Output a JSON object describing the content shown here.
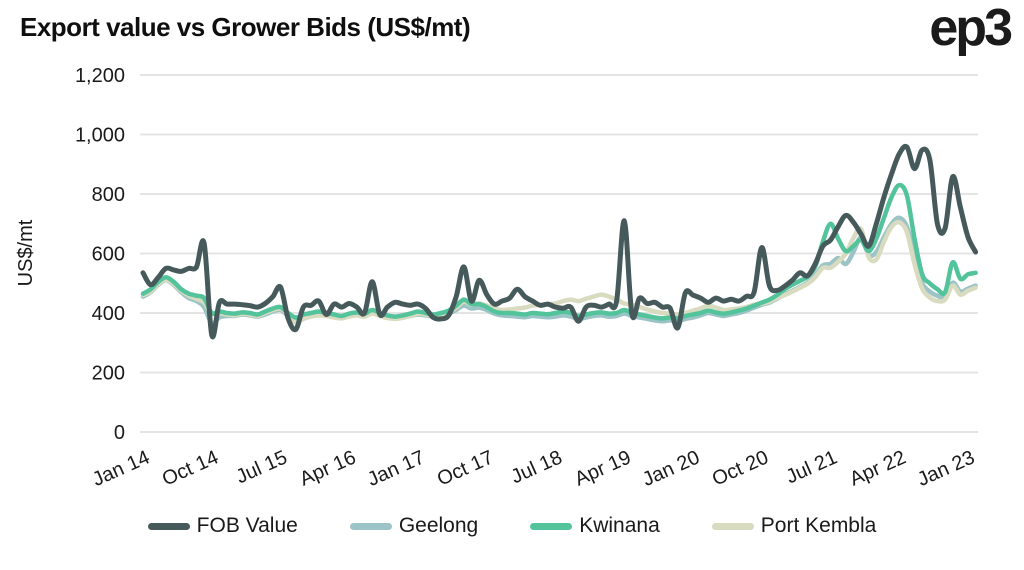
{
  "header": {
    "title": "Export value vs Grower Bids (US$/mt)",
    "logo": "ep3"
  },
  "chart_data": {
    "type": "line",
    "title": "Export value vs Grower Bids (US$/mt)",
    "xlabel": "",
    "ylabel": "US$/mt",
    "ylim": [
      0,
      1200
    ],
    "y_tick_values": [
      0,
      200,
      400,
      600,
      800,
      1000,
      1200
    ],
    "y_tick_labels": [
      "0",
      "200",
      "400",
      "600",
      "800",
      "1,000",
      "1,200"
    ],
    "grid": "horizontal",
    "legend_position": "bottom",
    "x_start": "Jan 2014",
    "x_frequency": "monthly",
    "x_tick_labels": [
      "Jan 14",
      "Oct 14",
      "Jul 15",
      "Apr 16",
      "Jan 17",
      "Oct 17",
      "Jul 18",
      "Apr 19",
      "Jan 20",
      "Oct 20",
      "Jul 21",
      "Apr 22",
      "Jan 23"
    ],
    "x_tick_month_indices": [
      0,
      9,
      18,
      27,
      36,
      45,
      54,
      63,
      72,
      81,
      90,
      99,
      108
    ],
    "series": [
      {
        "name": "FOB Value",
        "color": "#465A5C",
        "values": [
          535,
          495,
          520,
          550,
          545,
          540,
          550,
          555,
          635,
          325,
          435,
          430,
          430,
          428,
          425,
          420,
          432,
          455,
          487,
          382,
          345,
          420,
          426,
          440,
          395,
          430,
          420,
          432,
          420,
          400,
          505,
          395,
          420,
          436,
          430,
          426,
          430,
          415,
          385,
          380,
          392,
          455,
          555,
          440,
          510,
          462,
          430,
          440,
          450,
          480,
          455,
          440,
          426,
          430,
          420,
          416,
          420,
          372,
          420,
          426,
          420,
          430,
          440,
          710,
          396,
          450,
          432,
          436,
          420,
          416,
          350,
          468,
          460,
          450,
          436,
          450,
          440,
          446,
          440,
          456,
          470,
          620,
          492,
          476,
          490,
          510,
          535,
          525,
          565,
          625,
          645,
          690,
          728,
          705,
          665,
          625,
          700,
          790,
          868,
          935,
          958,
          885,
          948,
          915,
          700,
          685,
          858,
          755,
          655,
          605
        ]
      },
      {
        "name": "Geelong",
        "color": "#9CC3C6",
        "values": [
          455,
          470,
          495,
          510,
          495,
          470,
          450,
          440,
          420,
          365,
          385,
          390,
          390,
          395,
          392,
          388,
          395,
          405,
          410,
          390,
          375,
          385,
          390,
          395,
          392,
          388,
          385,
          390,
          394,
          390,
          400,
          392,
          385,
          382,
          386,
          390,
          395,
          392,
          388,
          392,
          398,
          410,
          425,
          415,
          418,
          410,
          398,
          392,
          390,
          388,
          386,
          390,
          388,
          386,
          388,
          392,
          388,
          380,
          385,
          390,
          392,
          388,
          390,
          398,
          390,
          385,
          380,
          375,
          372,
          375,
          372,
          380,
          385,
          392,
          400,
          395,
          390,
          395,
          400,
          408,
          418,
          428,
          435,
          448,
          462,
          475,
          488,
          502,
          525,
          560,
          565,
          585,
          565,
          605,
          655,
          595,
          605,
          655,
          700,
          720,
          690,
          585,
          500,
          472,
          458,
          452,
          502,
          472,
          482,
          492
        ]
      },
      {
        "name": "Kwinana",
        "color": "#53C39B",
        "values": [
          465,
          480,
          505,
          520,
          505,
          480,
          465,
          458,
          450,
          400,
          405,
          400,
          398,
          402,
          400,
          395,
          405,
          415,
          420,
          400,
          385,
          395,
          400,
          405,
          400,
          395,
          390,
          398,
          402,
          398,
          410,
          400,
          392,
          388,
          392,
          398,
          405,
          400,
          395,
          400,
          408,
          425,
          445,
          430,
          430,
          420,
          405,
          400,
          400,
          398,
          395,
          400,
          398,
          396,
          400,
          405,
          400,
          390,
          395,
          400,
          402,
          398,
          400,
          410,
          400,
          395,
          390,
          385,
          382,
          385,
          382,
          390,
          395,
          400,
          408,
          402,
          398,
          402,
          408,
          415,
          425,
          435,
          445,
          460,
          480,
          495,
          508,
          522,
          555,
          640,
          700,
          650,
          608,
          625,
          645,
          608,
          650,
          720,
          790,
          830,
          795,
          650,
          530,
          500,
          480,
          470,
          570,
          515,
          530,
          535
        ]
      },
      {
        "name": "Port Kembla",
        "color": "#D8DBBF",
        "values": [
          460,
          472,
          498,
          512,
          498,
          475,
          458,
          448,
          435,
          398,
          400,
          395,
          392,
          398,
          395,
          390,
          400,
          410,
          415,
          395,
          368,
          380,
          388,
          392,
          390,
          385,
          382,
          388,
          392,
          388,
          398,
          390,
          383,
          380,
          384,
          390,
          398,
          395,
          390,
          395,
          402,
          418,
          438,
          428,
          432,
          425,
          415,
          410,
          412,
          415,
          418,
          425,
          428,
          430,
          432,
          440,
          445,
          440,
          448,
          455,
          462,
          455,
          445,
          432,
          428,
          420,
          412,
          405,
          400,
          398,
          395,
          400,
          408,
          415,
          425,
          418,
          410,
          412,
          415,
          420,
          428,
          432,
          438,
          450,
          460,
          472,
          485,
          498,
          520,
          552,
          552,
          572,
          600,
          652,
          682,
          588,
          580,
          640,
          690,
          705,
          672,
          565,
          482,
          452,
          440,
          445,
          492,
          462,
          475,
          485
        ]
      }
    ],
    "style": {
      "grid_color": "#E4E4E4",
      "tick_text_color": "#1a1a1a",
      "title_color": "#0f0f0f",
      "background": "#ffffff"
    }
  },
  "legend": {
    "items": [
      {
        "label": "FOB Value"
      },
      {
        "label": "Geelong"
      },
      {
        "label": "Kwinana"
      },
      {
        "label": "Port Kembla"
      }
    ]
  }
}
